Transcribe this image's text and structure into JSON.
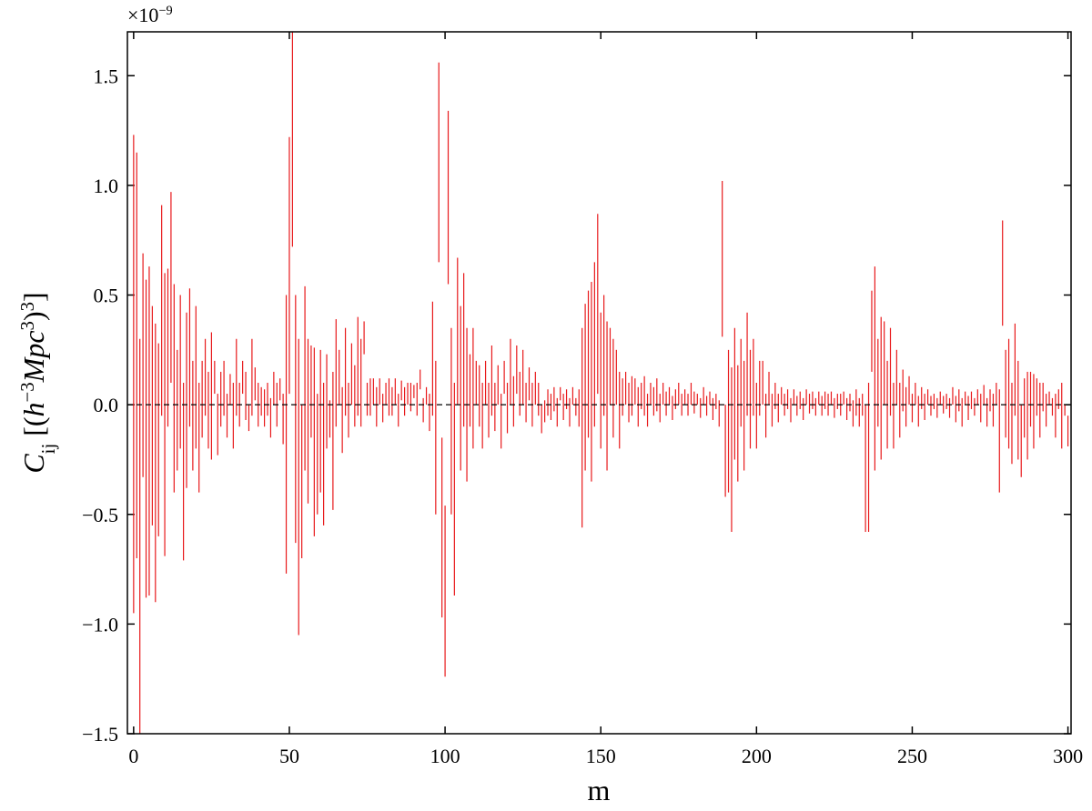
{
  "chart_data": {
    "type": "range",
    "color": "#e8191b",
    "xlabel": "m",
    "ylabel": [
      {
        "text": "C",
        "style": "base-italic"
      },
      {
        "text": "ij",
        "style": "sub"
      },
      {
        "text": " [(",
        "style": "base"
      },
      {
        "text": "h",
        "style": "base-italic"
      },
      {
        "text": "−3",
        "style": "sup"
      },
      {
        "text": "Mpc",
        "style": "base-italic"
      },
      {
        "text": "3",
        "style": "sup"
      },
      {
        "text": ")",
        "style": "base"
      },
      {
        "text": "3",
        "style": "sup"
      },
      {
        "text": "]",
        "style": "base"
      }
    ],
    "y_offset": [
      {
        "text": "×10",
        "style": "base"
      },
      {
        "text": "−9",
        "style": "sup"
      }
    ],
    "hline": 0,
    "xlim": [
      -2,
      301
    ],
    "ylim": [
      -1.5,
      1.7
    ],
    "xticks": [
      0,
      50,
      100,
      150,
      200,
      250,
      300
    ],
    "yticks": [
      {
        "value": -1.5,
        "label": "−1.5"
      },
      {
        "value": -1.0,
        "label": "−1.0"
      },
      {
        "value": -0.5,
        "label": "−0.5"
      },
      {
        "value": 0,
        "label": "0.0"
      },
      {
        "value": 0.5,
        "label": "0.5"
      },
      {
        "value": 1.0,
        "label": "1.0"
      },
      {
        "value": 1.5,
        "label": "1.5"
      }
    ],
    "x": [
      0,
      1,
      2,
      3,
      4,
      5,
      6,
      7,
      8,
      9,
      10,
      11,
      12,
      13,
      14,
      15,
      16,
      17,
      18,
      19,
      20,
      21,
      22,
      23,
      24,
      25,
      26,
      27,
      28,
      29,
      30,
      31,
      32,
      33,
      34,
      35,
      36,
      37,
      38,
      39,
      40,
      41,
      42,
      43,
      44,
      45,
      46,
      47,
      48,
      49,
      50,
      51,
      52,
      53,
      54,
      55,
      56,
      57,
      58,
      59,
      60,
      61,
      62,
      63,
      64,
      65,
      66,
      67,
      68,
      69,
      70,
      71,
      72,
      73,
      74,
      75,
      76,
      77,
      78,
      79,
      80,
      81,
      82,
      83,
      84,
      85,
      86,
      87,
      88,
      89,
      90,
      91,
      92,
      93,
      94,
      95,
      96,
      97,
      98,
      99,
      100,
      101,
      102,
      103,
      104,
      105,
      106,
      107,
      108,
      109,
      110,
      111,
      112,
      113,
      114,
      115,
      116,
      117,
      118,
      119,
      120,
      121,
      122,
      123,
      124,
      125,
      126,
      127,
      128,
      129,
      130,
      131,
      132,
      133,
      134,
      135,
      136,
      137,
      138,
      139,
      140,
      141,
      142,
      143,
      144,
      145,
      146,
      147,
      148,
      149,
      150,
      151,
      152,
      153,
      154,
      155,
      156,
      157,
      158,
      159,
      160,
      161,
      162,
      163,
      164,
      165,
      166,
      167,
      168,
      169,
      170,
      171,
      172,
      173,
      174,
      175,
      176,
      177,
      178,
      179,
      180,
      181,
      182,
      183,
      184,
      185,
      186,
      187,
      188,
      189,
      190,
      191,
      192,
      193,
      194,
      195,
      196,
      197,
      198,
      199,
      200,
      201,
      202,
      203,
      204,
      205,
      206,
      207,
      208,
      209,
      210,
      211,
      212,
      213,
      214,
      215,
      216,
      217,
      218,
      219,
      220,
      221,
      222,
      223,
      224,
      225,
      226,
      227,
      228,
      229,
      230,
      231,
      232,
      233,
      234,
      235,
      236,
      237,
      238,
      239,
      240,
      241,
      242,
      243,
      244,
      245,
      246,
      247,
      248,
      249,
      250,
      251,
      252,
      253,
      254,
      255,
      256,
      257,
      258,
      259,
      260,
      261,
      262,
      263,
      264,
      265,
      266,
      267,
      268,
      269,
      270,
      271,
      272,
      273,
      274,
      275,
      276,
      277,
      278,
      279,
      280,
      281,
      282,
      283,
      284,
      285,
      286,
      287,
      288,
      289,
      290,
      291,
      292,
      293,
      294,
      295,
      296,
      297,
      298,
      299,
      300
    ],
    "low": [
      -0.95,
      -0.7,
      -1.5,
      -0.33,
      -0.88,
      -0.87,
      -0.55,
      -0.9,
      -0.6,
      -0.05,
      -0.69,
      -0.1,
      0.1,
      -0.4,
      -0.3,
      -0.2,
      -0.71,
      -0.38,
      -0.1,
      -0.3,
      -0.2,
      -0.4,
      -0.15,
      -0.05,
      -0.2,
      -0.25,
      0.05,
      -0.23,
      -0.1,
      -0.05,
      -0.15,
      0.0,
      -0.2,
      -0.05,
      -0.1,
      0.05,
      -0.07,
      -0.12,
      -0.05,
      0.02,
      -0.1,
      -0.05,
      -0.1,
      -0.05,
      -0.15,
      0.0,
      -0.1,
      0.02,
      -0.18,
      -0.77,
      0.05,
      0.72,
      -0.63,
      -1.05,
      -0.7,
      -0.3,
      -0.45,
      -0.15,
      -0.6,
      -0.5,
      -0.4,
      -0.55,
      -0.2,
      -0.15,
      -0.48,
      -0.1,
      0.0,
      -0.22,
      -0.05,
      -0.15,
      0.0,
      -0.1,
      -0.05,
      -0.1,
      0.23,
      -0.05,
      -0.05,
      0.0,
      -0.1,
      0.0,
      -0.08,
      0.0,
      -0.05,
      -0.05,
      0.0,
      -0.1,
      0.02,
      -0.05,
      0.0,
      -0.03,
      0.03,
      -0.05,
      0.07,
      -0.08,
      0.0,
      -0.12,
      -0.05,
      -0.5,
      0.65,
      -0.97,
      -1.24,
      0.55,
      -0.5,
      -0.87,
      0.0,
      -0.3,
      -0.1,
      -0.35,
      -0.1,
      -0.2,
      0.0,
      -0.1,
      -0.2,
      0.0,
      -0.15,
      -0.05,
      -0.12,
      0.0,
      -0.2,
      0.05,
      -0.13,
      0.0,
      -0.1,
      0.05,
      -0.05,
      0.0,
      -0.08,
      0.02,
      -0.1,
      0.0,
      -0.05,
      -0.13,
      -0.08,
      -0.05,
      -0.07,
      -0.03,
      -0.1,
      0.02,
      -0.07,
      -0.02,
      -0.1,
      0.0,
      -0.05,
      -0.1,
      -0.56,
      -0.3,
      -0.15,
      -0.35,
      -0.1,
      0.05,
      -0.2,
      -0.05,
      -0.3,
      0.0,
      -0.15,
      0.0,
      -0.2,
      -0.05,
      0.0,
      -0.08,
      -0.05,
      0.0,
      -0.1,
      -0.02,
      -0.05,
      -0.1,
      0.0,
      -0.05,
      -0.03,
      -0.08,
      0.0,
      -0.05,
      0.0,
      -0.07,
      -0.02,
      0.0,
      -0.05,
      0.0,
      -0.05,
      0.0,
      -0.04,
      0.0,
      -0.06,
      0.0,
      -0.05,
      0.0,
      -0.07,
      -0.02,
      -0.1,
      0.31,
      -0.42,
      -0.4,
      -0.58,
      -0.25,
      -0.35,
      -0.1,
      -0.3,
      -0.05,
      -0.2,
      -0.05,
      -0.2,
      -0.05,
      0.0,
      -0.15,
      0.0,
      -0.1,
      -0.02,
      -0.08,
      0.0,
      -0.05,
      -0.02,
      -0.08,
      0.0,
      -0.05,
      -0.02,
      -0.07,
      0.0,
      -0.04,
      -0.02,
      -0.05,
      0.0,
      -0.05,
      -0.02,
      -0.05,
      0.0,
      -0.06,
      -0.02,
      -0.05,
      0.0,
      -0.07,
      -0.03,
      -0.1,
      -0.05,
      -0.1,
      -0.05,
      -0.58,
      -0.58,
      0.15,
      -0.3,
      -0.1,
      -0.25,
      0.0,
      -0.2,
      -0.05,
      -0.2,
      0.0,
      -0.15,
      -0.03,
      -0.1,
      0.0,
      -0.08,
      0.0,
      -0.1,
      -0.02,
      -0.07,
      0.0,
      -0.05,
      -0.02,
      -0.06,
      0.0,
      -0.04,
      -0.02,
      -0.06,
      0.0,
      -0.08,
      -0.03,
      -0.1,
      0.0,
      -0.07,
      -0.02,
      -0.05,
      0.0,
      -0.08,
      0.0,
      -0.1,
      -0.03,
      -0.1,
      0.0,
      -0.4,
      0.36,
      -0.15,
      -0.2,
      -0.27,
      -0.05,
      -0.25,
      -0.33,
      -0.15,
      -0.25,
      -0.1,
      -0.2,
      -0.05,
      -0.15,
      -0.03,
      -0.1,
      0.0,
      -0.05,
      -0.15,
      -0.02,
      -0.2,
      -0.05,
      -0.19
    ],
    "high": [
      1.23,
      1.15,
      0.3,
      0.69,
      0.57,
      0.63,
      0.45,
      0.37,
      0.28,
      0.91,
      0.6,
      0.62,
      0.97,
      0.55,
      0.25,
      0.5,
      0.1,
      0.42,
      0.53,
      0.2,
      0.45,
      0.1,
      0.2,
      0.3,
      0.15,
      0.33,
      0.2,
      0.05,
      0.15,
      0.2,
      0.05,
      0.14,
      0.1,
      0.3,
      0.1,
      0.2,
      0.15,
      0.0,
      0.3,
      0.17,
      0.1,
      0.08,
      0.07,
      0.1,
      0.03,
      0.15,
      0.1,
      0.12,
      0.05,
      0.5,
      1.22,
      1.7,
      0.5,
      0.3,
      0.0,
      0.54,
      0.3,
      0.27,
      0.26,
      0.05,
      0.25,
      0.1,
      0.23,
      0.02,
      0.15,
      0.39,
      0.25,
      0.08,
      0.35,
      0.1,
      0.28,
      0.18,
      0.4,
      0.3,
      0.38,
      0.1,
      0.12,
      0.12,
      0.08,
      0.12,
      0.05,
      0.1,
      0.12,
      0.08,
      0.12,
      0.05,
      0.11,
      0.08,
      0.1,
      0.1,
      0.09,
      0.1,
      0.16,
      0.03,
      0.08,
      0.05,
      0.47,
      0.2,
      1.56,
      -0.15,
      -0.46,
      1.34,
      0.35,
      0.1,
      0.67,
      0.45,
      0.6,
      0.35,
      0.23,
      0.35,
      0.2,
      0.18,
      0.1,
      0.2,
      0.1,
      0.27,
      0.1,
      0.18,
      0.05,
      0.2,
      0.1,
      0.3,
      0.13,
      0.27,
      0.15,
      0.25,
      0.1,
      0.17,
      0.1,
      0.15,
      0.1,
      0.0,
      0.02,
      0.07,
      0.05,
      0.08,
      0.03,
      0.08,
      0.05,
      0.07,
      0.03,
      0.08,
      0.03,
      0.07,
      0.35,
      0.46,
      0.52,
      0.56,
      0.65,
      0.87,
      0.42,
      0.5,
      0.38,
      0.35,
      0.3,
      0.25,
      0.15,
      0.12,
      0.15,
      0.1,
      0.13,
      0.12,
      0.08,
      0.1,
      0.13,
      0.05,
      0.1,
      0.08,
      0.12,
      0.05,
      0.1,
      0.06,
      0.08,
      0.04,
      0.07,
      0.1,
      0.05,
      0.07,
      0.05,
      0.1,
      0.06,
      0.05,
      0.03,
      0.08,
      0.04,
      0.06,
      0.03,
      0.05,
      0.02,
      1.02,
      0.0,
      0.25,
      0.17,
      0.35,
      0.18,
      0.3,
      0.2,
      0.42,
      0.25,
      0.3,
      0.1,
      0.2,
      0.2,
      0.05,
      0.15,
      0.05,
      0.1,
      0.05,
      0.08,
      0.05,
      0.07,
      0.03,
      0.07,
      0.04,
      0.06,
      0.03,
      0.07,
      0.05,
      0.06,
      0.03,
      0.06,
      0.04,
      0.06,
      0.05,
      0.06,
      0.03,
      0.05,
      0.05,
      0.06,
      0.03,
      0.05,
      0.02,
      0.07,
      0.03,
      0.05,
      0.0,
      0.1,
      0.52,
      0.63,
      0.3,
      0.4,
      0.38,
      0.2,
      0.35,
      0.1,
      0.25,
      0.1,
      0.16,
      0.08,
      0.13,
      0.05,
      0.1,
      0.04,
      0.08,
      0.05,
      0.07,
      0.04,
      0.05,
      0.03,
      0.06,
      0.04,
      0.05,
      0.03,
      0.08,
      0.04,
      0.07,
      0.03,
      0.06,
      0.04,
      0.06,
      0.03,
      0.07,
      0.05,
      0.09,
      0.03,
      0.07,
      0.05,
      0.1,
      0.07,
      0.84,
      0.25,
      0.3,
      0.1,
      0.37,
      0.2,
      0.0,
      0.12,
      0.15,
      0.15,
      0.14,
      0.12,
      0.1,
      0.1,
      0.05,
      0.06,
      0.03,
      0.05,
      0.07,
      0.1,
      0.0,
      -0.05
    ]
  }
}
